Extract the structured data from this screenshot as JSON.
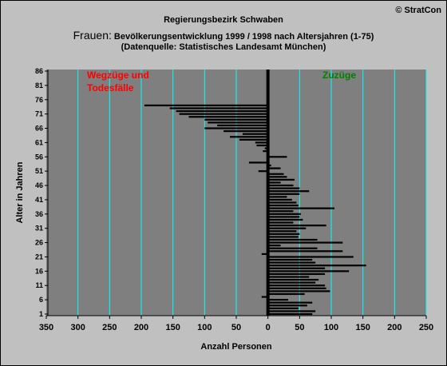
{
  "header": {
    "copyright": "© StratCon",
    "region": "Regierungsbezirk Schwaben",
    "title_main": "Frauen:",
    "title_rest": " Bevölkerungsentwicklung 1999 / 1998  nach Altersjahren (1-75)",
    "source": "(Datenquelle: Statistisches Landesamt München)"
  },
  "colors": {
    "background": "#c0c0c0",
    "plot_background": "#7f7f7f",
    "gridline": "#00ffff",
    "bar": "#000000",
    "label_left": "#ff0000",
    "label_right": "#008000"
  },
  "chart_data": {
    "type": "bar",
    "orientation": "horizontal",
    "title": "Frauen: Bevölkerungsentwicklung 1999 / 1998  nach Altersjahren (1-75)",
    "xlabel": "Anzahl Personen",
    "ylabel": "Alter in Jahren",
    "xlim": [
      -350,
      250
    ],
    "ylim": [
      1,
      86
    ],
    "x_ticks": [
      -350,
      -300,
      -250,
      -200,
      -150,
      -100,
      -50,
      0,
      50,
      100,
      150,
      200,
      250
    ],
    "x_tick_labels": [
      "350",
      "300",
      "250",
      "200",
      "150",
      "100",
      "50",
      "0",
      "50",
      "100",
      "150",
      "200",
      "250"
    ],
    "y_ticks": [
      1,
      6,
      11,
      16,
      21,
      26,
      31,
      36,
      41,
      46,
      51,
      56,
      61,
      66,
      71,
      76,
      81,
      86
    ],
    "grid": true,
    "annotations": {
      "left": "Wegzüge und\nTodesfälle",
      "right": "Zuzüge"
    },
    "series": [
      {
        "ages": [
          1,
          2,
          3,
          4,
          5,
          6,
          7,
          8,
          9,
          10,
          11,
          12,
          13,
          14,
          15,
          16,
          17,
          18,
          19,
          20,
          21,
          22,
          23,
          24,
          25,
          26,
          27,
          28,
          29,
          30,
          31,
          32,
          33,
          34,
          35,
          36,
          37,
          38,
          39,
          40,
          41,
          42,
          43,
          44,
          45,
          46,
          47,
          48,
          49,
          50,
          51,
          52,
          53,
          54,
          55,
          56,
          57,
          58,
          59,
          60,
          61,
          62,
          63,
          64,
          65,
          66,
          67,
          68,
          69,
          70,
          71,
          72,
          73,
          74,
          75
        ],
        "values": [
          70,
          75,
          48,
          62,
          70,
          32,
          -10,
          58,
          98,
          92,
          90,
          75,
          80,
          65,
          90,
          128,
          90,
          155,
          75,
          70,
          135,
          -10,
          118,
          78,
          20,
          118,
          78,
          48,
          50,
          45,
          60,
          92,
          40,
          55,
          50,
          52,
          40,
          105,
          48,
          45,
          38,
          30,
          50,
          65,
          50,
          40,
          20,
          42,
          30,
          25,
          -15,
          20,
          5,
          -30,
          0,
          30,
          0,
          -8,
          -5,
          -18,
          -20,
          -45,
          -60,
          -40,
          -70,
          -100,
          -80,
          -95,
          -100,
          -125,
          -140,
          -145,
          -155,
          -195,
          0
        ]
      }
    ]
  }
}
